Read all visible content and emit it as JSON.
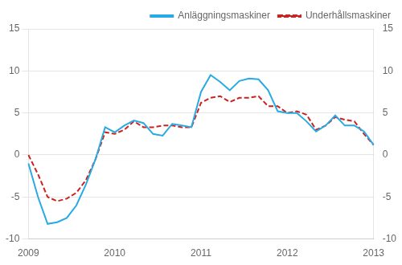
{
  "chart_data": {
    "type": "line",
    "categories": [
      "2009",
      null,
      null,
      null,
      null,
      null,
      null,
      null,
      null,
      "2010",
      null,
      null,
      null,
      null,
      null,
      null,
      null,
      null,
      "2011",
      null,
      null,
      null,
      null,
      null,
      null,
      null,
      null,
      "2012",
      null,
      null,
      null,
      null,
      null,
      null,
      null,
      null,
      "2013"
    ],
    "series": [
      {
        "name": "Anläggningsmaskiner",
        "color": "#29aae2",
        "line_style": "solid",
        "values": [
          -1.0,
          -5.0,
          -8.2,
          -8.0,
          -7.5,
          -6.0,
          -3.5,
          -0.5,
          3.3,
          2.7,
          3.5,
          4.1,
          3.8,
          2.5,
          2.3,
          3.7,
          3.5,
          3.3,
          7.5,
          9.5,
          8.7,
          7.7,
          8.8,
          9.1,
          9.0,
          7.7,
          5.2,
          5.0,
          5.0,
          4.0,
          2.8,
          3.5,
          4.7,
          3.5,
          3.5,
          2.8,
          1.2
        ]
      },
      {
        "name": "Underhållsmaskiner",
        "color": "#cc2222",
        "line_style": "dashed",
        "values": [
          0.0,
          -2.3,
          -5.0,
          -5.5,
          -5.2,
          -4.5,
          -3.0,
          -0.5,
          2.7,
          2.5,
          3.0,
          4.0,
          3.3,
          3.3,
          3.5,
          3.5,
          3.3,
          3.3,
          6.2,
          6.8,
          7.0,
          6.3,
          6.8,
          6.8,
          7.0,
          5.8,
          5.8,
          5.0,
          5.2,
          4.8,
          3.0,
          3.5,
          4.5,
          4.2,
          4.0,
          2.5,
          1.2
        ]
      }
    ],
    "ylim": [
      -10,
      15
    ],
    "yticks": [
      -10,
      -5,
      0,
      5,
      10,
      15
    ],
    "y2lim": [
      -10,
      15
    ],
    "y2ticks": [
      -10,
      -5,
      0,
      5,
      10,
      15
    ],
    "grid": true,
    "legend": "upper right"
  }
}
